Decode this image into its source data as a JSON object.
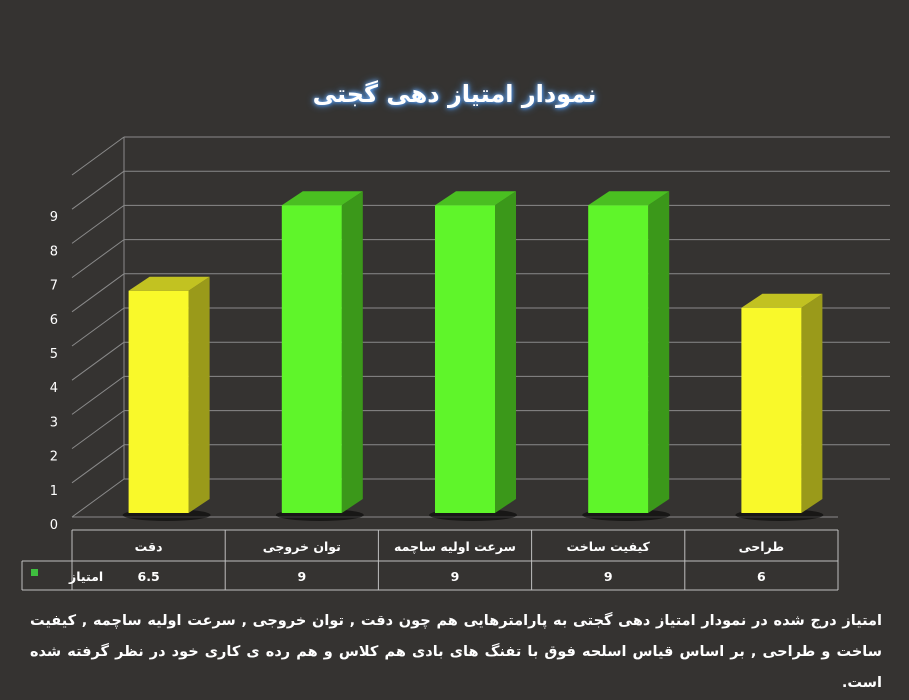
{
  "chart_data": {
    "type": "bar",
    "title": "نمودار امتیاز دهی گجتی",
    "categories": [
      "دقت",
      "توان خروجی",
      "سرعت اولیه ساچمه",
      "کیفیت ساخت",
      "طراحی"
    ],
    "series": [
      {
        "name": "امتیاز",
        "values": [
          6.5,
          9,
          9,
          9,
          6
        ],
        "value_labels": [
          "6.5",
          "9",
          "9",
          "9",
          "6"
        ],
        "legend_color": "#3fbf3f"
      }
    ],
    "y_ticks": [
      "0",
      "1",
      "2",
      "3",
      "4",
      "5",
      "6",
      "7",
      "8",
      "9"
    ],
    "ylim": [
      0,
      9
    ],
    "grid": true,
    "bar_colors": [
      "#f9f92a",
      "#5ff52a",
      "#5ff52a",
      "#5ff52a",
      "#f9f92a"
    ],
    "data_table": true
  },
  "caption": "امتیاز درج شده در نمودار امتیاز دهی گجتی به پارامترهایی هم چون دقت , توان خروجی , سرعت اولیه ساچمه , کیفیت ساخت و طراحی , بر اساس قیاس اسلحه فوق با تفنگ های بادی هم کلاس و هم رده ی کاری خود در نظر گرفته شده است.",
  "colors": {
    "background": "#353331",
    "grid": "#8a8a8a",
    "table_border": "#bfbfbf"
  }
}
